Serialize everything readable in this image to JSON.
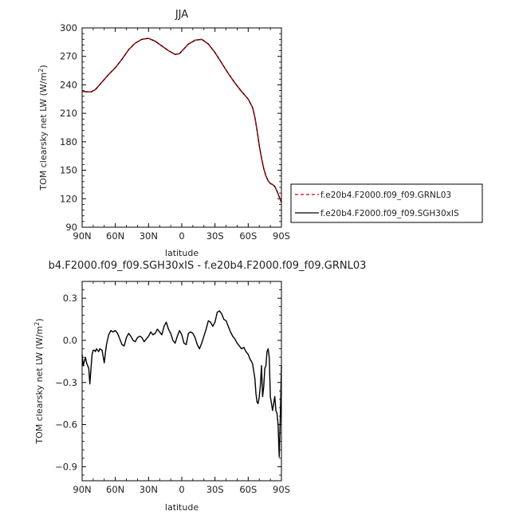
{
  "chart_data": [
    {
      "type": "line",
      "title": "JJA",
      "xlabel": "latitude",
      "ylabel": "TOM clearsky net LW (W/m2)",
      "ylabel_main": "TOM clearsky net LW (W/m",
      "ylabel_sup": "2",
      "ylabel_end": ")",
      "x_ticks": [
        {
          "value": 90,
          "label": "90N"
        },
        {
          "value": 60,
          "label": "60N"
        },
        {
          "value": 30,
          "label": "30N"
        },
        {
          "value": 0,
          "label": "0"
        },
        {
          "value": -30,
          "label": "30S"
        },
        {
          "value": -60,
          "label": "60S"
        },
        {
          "value": -90,
          "label": "90S"
        }
      ],
      "xlim": [
        90,
        -90
      ],
      "y_ticks": [
        90,
        120,
        150,
        180,
        210,
        240,
        270,
        300
      ],
      "ylim": [
        90,
        300
      ],
      "series": [
        {
          "name": "f.e20b4.F2000.f09_f09.GRNL03",
          "color": "#cc0000",
          "style": "dashed",
          "x": [
            90,
            82,
            78,
            72,
            66,
            60,
            54,
            48,
            42,
            36,
            30,
            24,
            18,
            12,
            6,
            2,
            -2,
            -6,
            -12,
            -18,
            -24,
            -30,
            -36,
            -42,
            -48,
            -54,
            -60,
            -64,
            -66,
            -68,
            -70,
            -72,
            -74,
            -76,
            -78,
            -80,
            -82,
            -84,
            -86,
            -88,
            -90
          ],
          "y": [
            233,
            232.5,
            235,
            243,
            251,
            258,
            267,
            277,
            284,
            288,
            289,
            286,
            281,
            276,
            272,
            273,
            278,
            283,
            287,
            288,
            283,
            274,
            263,
            252,
            242,
            233,
            225,
            216,
            206,
            192,
            176,
            163,
            152,
            144,
            139,
            136,
            135,
            133,
            128,
            122,
            116
          ]
        },
        {
          "name": "f.e20b4.F2000.f09_f09.SGH30xIS",
          "color": "#000000",
          "style": "solid",
          "x": [
            90,
            82,
            78,
            72,
            66,
            60,
            54,
            48,
            42,
            36,
            30,
            24,
            18,
            12,
            6,
            2,
            -2,
            -6,
            -12,
            -18,
            -24,
            -30,
            -36,
            -42,
            -48,
            -54,
            -60,
            -64,
            -66,
            -68,
            -70,
            -72,
            -74,
            -76,
            -78,
            -80,
            -82,
            -84,
            -86,
            -88,
            -90
          ],
          "y": [
            233,
            232.5,
            235,
            243,
            251,
            258,
            267,
            277,
            284,
            288,
            289,
            286,
            281,
            276,
            272,
            273,
            278,
            283,
            287,
            288,
            283,
            274,
            263,
            252,
            242,
            233,
            225,
            216,
            206,
            192,
            176,
            163,
            152,
            144,
            139,
            136,
            135,
            133,
            128,
            122,
            116
          ]
        }
      ]
    },
    {
      "type": "line",
      "title": "b4.F2000.f09_f09.SGH30xIS - f.e20b4.F2000.f09_f09.GRNL03",
      "xlabel": "latitude",
      "ylabel": "TOM clearsky net LW (W/m2)",
      "ylabel_main": "TOM clearsky net LW (W/m",
      "ylabel_sup": "2",
      "ylabel_end": ")",
      "x_ticks": [
        {
          "value": 90,
          "label": "90N"
        },
        {
          "value": 60,
          "label": "60N"
        },
        {
          "value": 30,
          "label": "30N"
        },
        {
          "value": 0,
          "label": "0"
        },
        {
          "value": -30,
          "label": "30S"
        },
        {
          "value": -60,
          "label": "60S"
        },
        {
          "value": -90,
          "label": "90S"
        }
      ],
      "xlim": [
        90,
        -90
      ],
      "y_ticks": [
        {
          "value": 0.3,
          "label": "0.3"
        },
        {
          "value": 0.0,
          "label": "0.0"
        },
        {
          "value": -0.3,
          "label": "−0.3"
        },
        {
          "value": -0.6,
          "label": "−0.6"
        },
        {
          "value": -0.9,
          "label": "−0.9"
        }
      ],
      "ylim": [
        -1.0,
        0.42
      ],
      "series": [
        {
          "name": "",
          "color": "#000000",
          "style": "solid",
          "x": [
            90,
            89,
            88,
            87,
            86,
            85,
            84,
            83,
            82,
            81,
            80,
            79,
            78,
            77,
            76,
            75,
            74,
            72,
            70,
            69,
            68,
            66,
            64,
            62,
            60,
            58,
            56,
            54,
            52,
            50,
            48,
            46,
            44,
            42,
            40,
            38,
            36,
            34,
            32,
            30,
            28,
            26,
            24,
            22,
            20,
            18,
            16,
            14,
            12,
            10,
            8,
            6,
            4,
            2,
            0,
            -2,
            -4,
            -6,
            -8,
            -10,
            -12,
            -14,
            -16,
            -18,
            -20,
            -22,
            -24,
            -26,
            -28,
            -30,
            -32,
            -34,
            -36,
            -38,
            -40,
            -42,
            -44,
            -46,
            -48,
            -50,
            -52,
            -54,
            -56,
            -58,
            -60,
            -61,
            -62,
            -63,
            -64,
            -65,
            -66,
            -67,
            -68,
            -69,
            -70,
            -71,
            -72,
            -73,
            -74,
            -75,
            -76,
            -77,
            -78,
            -79,
            -80,
            -81,
            -82,
            -83,
            -84,
            -85,
            -86,
            -87,
            -88,
            -89,
            -90
          ],
          "y": [
            -0.1,
            -0.18,
            -0.15,
            -0.12,
            -0.16,
            -0.18,
            -0.2,
            -0.31,
            -0.2,
            -0.1,
            -0.07,
            -0.07,
            -0.08,
            -0.06,
            -0.07,
            -0.08,
            -0.06,
            -0.07,
            -0.16,
            -0.09,
            -0.03,
            0.04,
            0.07,
            0.06,
            0.07,
            0.05,
            0.01,
            -0.03,
            -0.04,
            0.02,
            0.05,
            0.03,
            0.0,
            -0.01,
            0.02,
            0.03,
            0.02,
            -0.01,
            0.01,
            0.03,
            0.06,
            0.04,
            0.05,
            0.08,
            0.06,
            0.04,
            0.1,
            0.13,
            0.08,
            0.05,
            0.0,
            -0.02,
            0.03,
            0.07,
            0.04,
            -0.02,
            -0.03,
            0.05,
            0.06,
            0.05,
            0.02,
            -0.03,
            -0.06,
            -0.02,
            0.03,
            0.08,
            0.14,
            0.13,
            0.1,
            0.13,
            0.2,
            0.21,
            0.19,
            0.15,
            0.14,
            0.1,
            0.06,
            0.03,
            0.01,
            -0.02,
            -0.04,
            -0.06,
            -0.05,
            -0.08,
            -0.1,
            -0.12,
            -0.14,
            -0.15,
            -0.17,
            -0.22,
            -0.27,
            -0.38,
            -0.44,
            -0.45,
            -0.4,
            -0.32,
            -0.18,
            -0.4,
            -0.33,
            -0.2,
            -0.18,
            -0.08,
            -0.06,
            -0.12,
            -0.4,
            -0.45,
            -0.5,
            -0.45,
            -0.4,
            -0.5,
            -0.52,
            -0.6,
            -0.83,
            -0.55,
            -0.18
          ],
          "y_note": ""
        }
      ]
    }
  ]
}
